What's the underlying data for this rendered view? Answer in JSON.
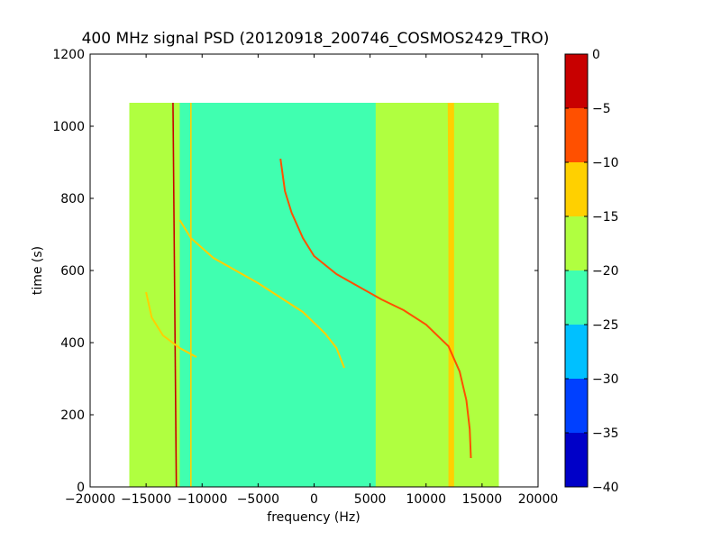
{
  "chart_data": {
    "type": "heatmap",
    "title": "400 MHz signal PSD (20120918_200746_COSMOS2429_TRO)",
    "xlabel": "frequency (Hz)",
    "ylabel": "time (s)",
    "xlim": [
      -20000,
      20000
    ],
    "ylim": [
      0,
      1200
    ],
    "x_ticks": [
      -20000,
      -15000,
      -10000,
      -5000,
      0,
      5000,
      10000,
      15000,
      20000
    ],
    "x_tick_labels": [
      "−20000",
      "−15000",
      "−10000",
      "−5000",
      "0",
      "5000",
      "10000",
      "15000",
      "20000"
    ],
    "y_ticks": [
      0,
      200,
      400,
      600,
      800,
      1000,
      1200
    ],
    "y_tick_labels": [
      "0",
      "200",
      "400",
      "600",
      "800",
      "1000",
      "1200"
    ],
    "data_extent": {
      "x": [
        -16500,
        16500
      ],
      "y": [
        0,
        1065
      ]
    },
    "background_level": -22.5,
    "colorbar": {
      "range": [
        -40,
        0
      ],
      "levels": [
        {
          "min": -40,
          "max": -35,
          "color": "#0000c8"
        },
        {
          "min": -35,
          "max": -30,
          "color": "#0040ff"
        },
        {
          "min": -30,
          "max": -25,
          "color": "#00c0ff"
        },
        {
          "min": -25,
          "max": -20,
          "color": "#40ffb0"
        },
        {
          "min": -20,
          "max": -15,
          "color": "#b0ff40"
        },
        {
          "min": -15,
          "max": -10,
          "color": "#ffd000"
        },
        {
          "min": -10,
          "max": -5,
          "color": "#ff5000"
        },
        {
          "min": -5,
          "max": 0,
          "color": "#c80000"
        }
      ],
      "ticks": [
        0,
        -5,
        -10,
        -15,
        -20,
        -25,
        -30,
        -35,
        -40
      ],
      "tick_labels": [
        "0",
        "−5",
        "−10",
        "−15",
        "−20",
        "−25",
        "−30",
        "−35",
        "−40"
      ]
    },
    "bands": [
      {
        "x": [
          -16500,
          -12500
        ],
        "level": -17.5
      },
      {
        "x": [
          -12500,
          -12000
        ],
        "level": -17.5
      },
      {
        "x": [
          5500,
          16500
        ],
        "level": -17.5
      },
      {
        "x": [
          12000,
          12500
        ],
        "level": -12.5
      }
    ],
    "lines": [
      {
        "x": [
          -12600,
          -12300
        ],
        "y": [
          1065,
          0
        ],
        "level": -2.5
      },
      {
        "x": [
          -11000,
          -11000
        ],
        "y": [
          1065,
          0
        ],
        "level": -12.5
      },
      {
        "x": [
          12000,
          12200
        ],
        "y": [
          1065,
          0
        ],
        "level": -12.5
      }
    ],
    "curves": [
      {
        "points": [
          [
            -3000,
            910
          ],
          [
            -2600,
            820
          ],
          [
            -2000,
            760
          ],
          [
            -1000,
            690
          ],
          [
            0,
            640
          ],
          [
            2000,
            590
          ],
          [
            4000,
            555
          ],
          [
            6000,
            520
          ],
          [
            8000,
            490
          ],
          [
            10000,
            450
          ],
          [
            12000,
            390
          ],
          [
            13000,
            320
          ],
          [
            13600,
            240
          ],
          [
            13900,
            160
          ],
          [
            14000,
            80
          ]
        ],
        "level": -7.5
      },
      {
        "points": [
          [
            -12000,
            740
          ],
          [
            -11000,
            690
          ],
          [
            -9000,
            635
          ],
          [
            -7000,
            600
          ],
          [
            -5000,
            565
          ],
          [
            -3000,
            525
          ],
          [
            -1000,
            485
          ],
          [
            0,
            455
          ],
          [
            1000,
            425
          ],
          [
            2000,
            385
          ],
          [
            2700,
            330
          ]
        ],
        "level": -12.5
      },
      {
        "points": [
          [
            -15000,
            540
          ],
          [
            -14500,
            470
          ],
          [
            -13500,
            420
          ],
          [
            -12000,
            385
          ],
          [
            -10500,
            360
          ]
        ],
        "level": -12.5
      }
    ]
  }
}
